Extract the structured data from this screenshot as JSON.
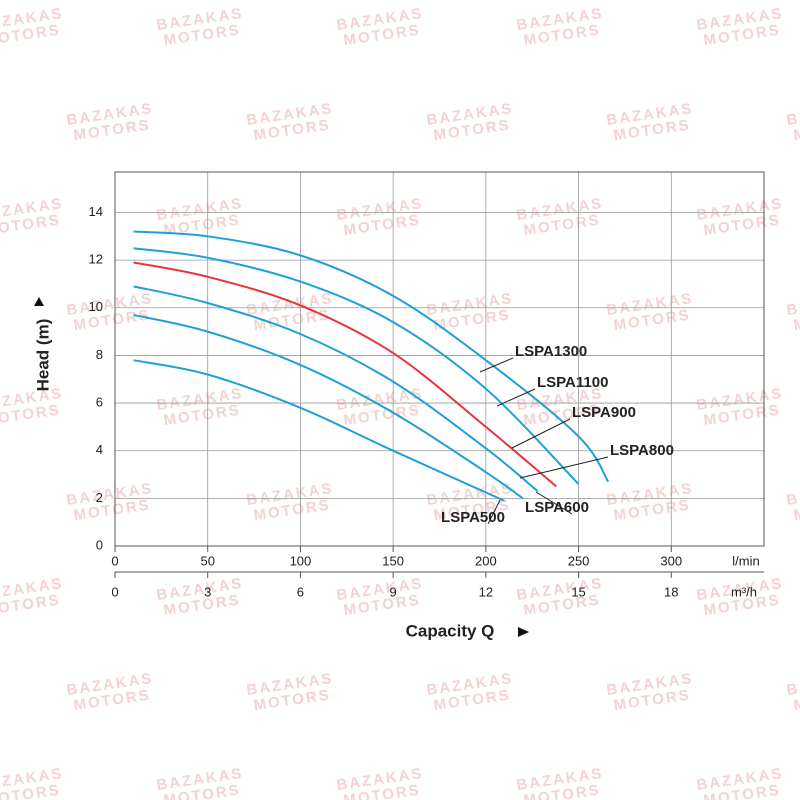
{
  "chart_data": {
    "type": "line",
    "watermark": [
      "BAZAKAS",
      "MOTORS"
    ],
    "ylabel": "Head (m)",
    "xlabel": "Capacity Q",
    "xunit": "l/min",
    "x2unit": "m³/h",
    "xlim": [
      0,
      350
    ],
    "xticks": [
      0,
      50,
      100,
      150,
      200,
      250,
      300
    ],
    "x2lim": [
      0,
      21
    ],
    "x2ticks": [
      0,
      3,
      6,
      9,
      12,
      15,
      18
    ],
    "ylim": [
      0,
      15.7
    ],
    "yticks": [
      0,
      2,
      4,
      6,
      8,
      10,
      12,
      14
    ],
    "grid": true,
    "series": [
      {
        "name": "LSPA1300",
        "color": "#1fa0d8",
        "x": [
          10,
          50,
          100,
          150,
          200,
          250,
          266
        ],
        "values": [
          13.2,
          13.0,
          12.2,
          10.5,
          7.8,
          4.6,
          2.7
        ]
      },
      {
        "name": "LSPA1100",
        "color": "#1fa0d8",
        "x": [
          10,
          50,
          100,
          150,
          200,
          250
        ],
        "values": [
          12.5,
          12.1,
          11.1,
          9.4,
          6.6,
          2.6
        ]
      },
      {
        "name": "LSPA900",
        "color": "#e8343a",
        "x": [
          10,
          50,
          100,
          150,
          200,
          238
        ],
        "values": [
          11.9,
          11.3,
          10.1,
          8.1,
          5.0,
          2.5
        ]
      },
      {
        "name": "LSPA800",
        "color": "#1fa0d8",
        "x": [
          10,
          50,
          100,
          150,
          200,
          228
        ],
        "values": [
          10.9,
          10.2,
          8.9,
          6.9,
          4.1,
          2.3
        ]
      },
      {
        "name": "LSPA600",
        "color": "#1fa0d8",
        "x": [
          10,
          50,
          100,
          150,
          200,
          220
        ],
        "values": [
          9.7,
          9.0,
          7.6,
          5.6,
          3.1,
          2.0
        ]
      },
      {
        "name": "LSPA500",
        "color": "#1fa0d8",
        "x": [
          10,
          50,
          100,
          150,
          210
        ],
        "values": [
          7.8,
          7.2,
          5.8,
          4.0,
          1.9
        ]
      }
    ]
  }
}
